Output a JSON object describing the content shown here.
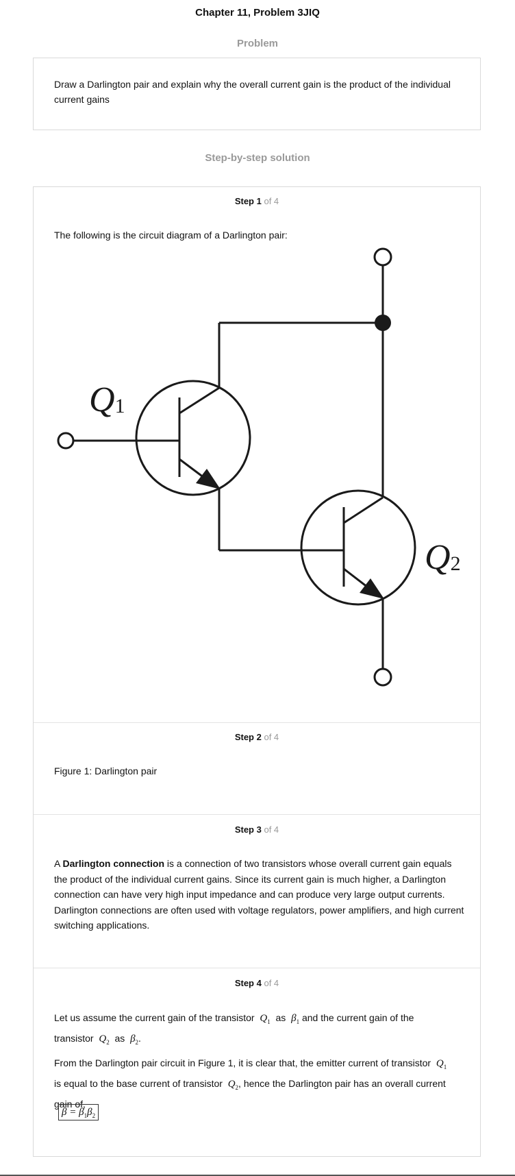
{
  "page": {
    "title": "Chapter 11, Problem 3JIQ"
  },
  "problem": {
    "heading": "Problem",
    "text": "Draw a Darlington pair and explain why the overall current gain is the product of the individual current gains"
  },
  "solution": {
    "heading": "Step-by-step solution",
    "of_total": "of 4"
  },
  "steps": [
    {
      "label": "Step 1",
      "text": "The following is the circuit diagram of a Darlington pair:"
    },
    {
      "label": "Step 2",
      "text": "Figure 1: Darlington pair"
    },
    {
      "label": "Step 3",
      "bold_term": "Darlington connection",
      "text": " is a connection of two transistors whose overall current gain equals the product of the individual current gains. Since its current gain is much higher, a Darlington connection can have very high input impedance and can produce very large output currents. Darlington connections are often used with voltage regulators, power amplifiers, and high current switching applications.",
      "prefix": "A "
    },
    {
      "label": "Step 4",
      "line1_a": "Let us assume the current gain of the transistor",
      "line1_b": "as",
      "line1_c": "and the current gain of the",
      "line2_a": "transistor",
      "line2_b": "as",
      "line3_a": "From the Darlington pair circuit in Figure 1, it is clear that, the emitter current of transistor",
      "line4_a": "is equal to the base current of transistor",
      "line4_b": ", hence the Darlington pair has an overall current",
      "line5": "gain of,",
      "formula": "β = β₁β₂"
    }
  ],
  "math": {
    "Q": "Q",
    "beta": "β",
    "sub1": "1",
    "sub2": "2"
  },
  "diagram": {
    "label_q1": "Q",
    "label_q1_sub": "1",
    "label_q2": "Q",
    "label_q2_sub": "2"
  }
}
